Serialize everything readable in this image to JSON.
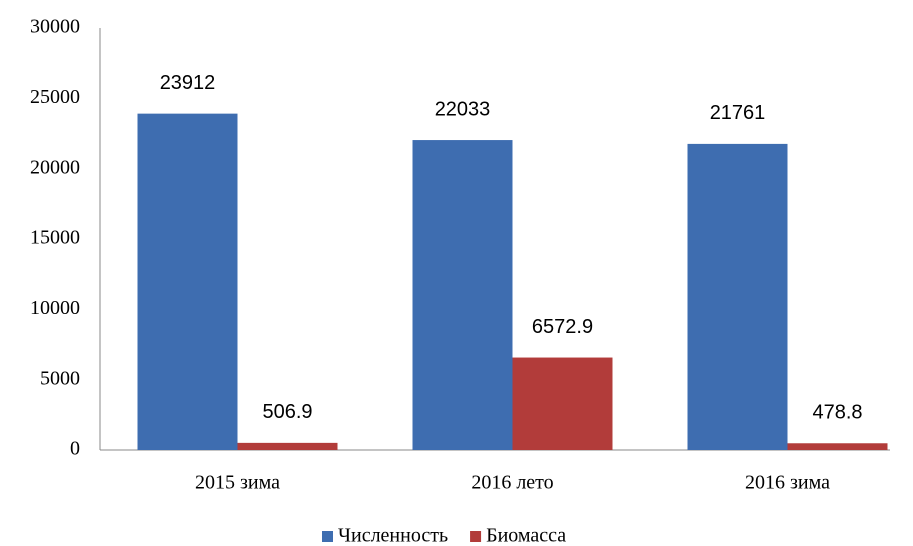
{
  "chart_data": {
    "type": "bar",
    "categories": [
      "2015 зима",
      "2016 лето",
      "2016 зима"
    ],
    "series": [
      {
        "name": "Численность",
        "color": "#3e6db0",
        "values": [
          23912,
          22033,
          21761
        ]
      },
      {
        "name": "Биомасса",
        "color": "#b23c3a",
        "values": [
          506.9,
          6572.9,
          478.8
        ]
      }
    ],
    "ylim": [
      0,
      30000
    ],
    "yticks": [
      0,
      5000,
      10000,
      15000,
      20000,
      25000,
      30000
    ],
    "grid": false,
    "legend": "bottom"
  }
}
